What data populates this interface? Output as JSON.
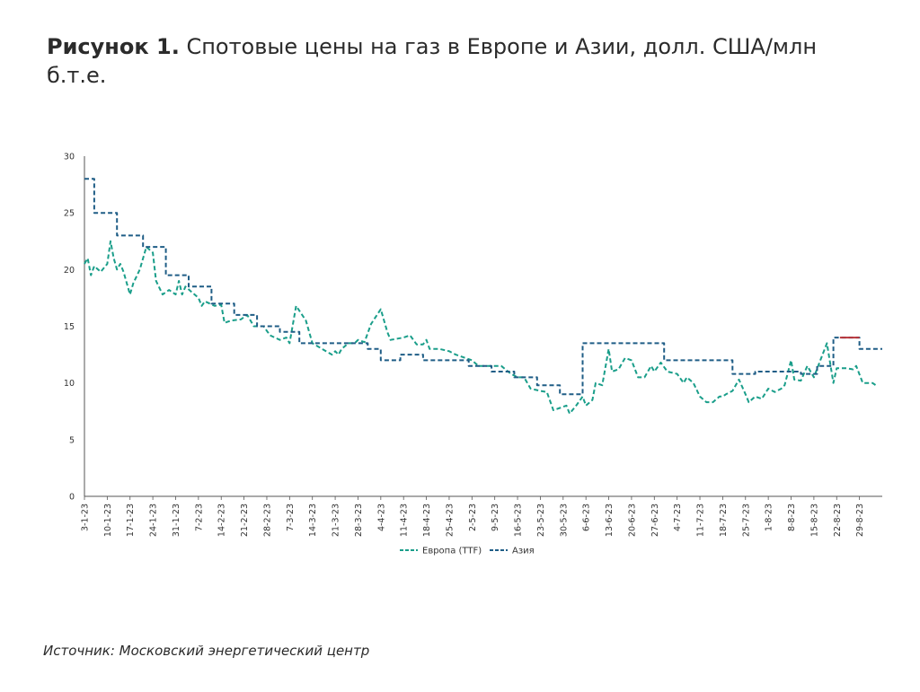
{
  "title": {
    "bold": "Рисунок 1.",
    "text": " Спотовые цены на газ в Европе и Азии, долл. США/млн б.т.е."
  },
  "source": "Источник: Московский энергетический центр",
  "colors": {
    "europe": "#1a9e8a",
    "asia": "#1f5d86",
    "asia_highlight": "#b9343a",
    "axis": "#555555"
  },
  "chart_data": {
    "type": "line",
    "ylim": [
      0,
      30
    ],
    "yticks": [
      0,
      5,
      10,
      15,
      20,
      25,
      30
    ],
    "xlim": [
      "2023-01-03",
      "2023-09-05"
    ],
    "xtick_labels": [
      "3-1-23",
      "10-1-23",
      "17-1-23",
      "24-1-23",
      "31-1-23",
      "7-2-23",
      "14-2-23",
      "21-2-23",
      "28-2-23",
      "7-3-23",
      "14-3-23",
      "21-3-23",
      "28-3-23",
      "4-4-23",
      "11-4-23",
      "18-4-23",
      "25-4-23",
      "2-5-23",
      "9-5-23",
      "16-5-23",
      "23-5-23",
      "30-5-23",
      "6-6-23",
      "13-6-23",
      "20-6-23",
      "27-6-23",
      "4-7-23",
      "11-7-23",
      "18-7-23",
      "25-7-23",
      "1-8-23",
      "8-8-23",
      "15-8-23",
      "22-8-23",
      "29-8-23"
    ],
    "legend": [
      "Европа (TTF)",
      "Азия"
    ],
    "legend_position": "bottom",
    "grid": false,
    "series": [
      {
        "name": "Европа (TTF)",
        "style": "dashed",
        "points": [
          [
            "2023-01-03",
            20.5
          ],
          [
            "2023-01-04",
            21.0
          ],
          [
            "2023-01-05",
            19.5
          ],
          [
            "2023-01-06",
            20.3
          ],
          [
            "2023-01-08",
            19.8
          ],
          [
            "2023-01-10",
            20.5
          ],
          [
            "2023-01-11",
            22.5
          ],
          [
            "2023-01-12",
            21.0
          ],
          [
            "2023-01-13",
            20.0
          ],
          [
            "2023-01-14",
            20.5
          ],
          [
            "2023-01-15",
            19.8
          ],
          [
            "2023-01-17",
            17.8
          ],
          [
            "2023-01-18",
            18.8
          ],
          [
            "2023-01-20",
            20.0
          ],
          [
            "2023-01-22",
            22.0
          ],
          [
            "2023-01-24",
            21.5
          ],
          [
            "2023-01-25",
            19.0
          ],
          [
            "2023-01-27",
            17.8
          ],
          [
            "2023-01-29",
            18.2
          ],
          [
            "2023-01-31",
            17.8
          ],
          [
            "2023-02-01",
            19.0
          ],
          [
            "2023-02-02",
            17.8
          ],
          [
            "2023-02-03",
            18.5
          ],
          [
            "2023-02-05",
            18.0
          ],
          [
            "2023-02-07",
            17.5
          ],
          [
            "2023-02-08",
            16.8
          ],
          [
            "2023-02-09",
            17.2
          ],
          [
            "2023-02-12",
            16.8
          ],
          [
            "2023-02-14",
            16.9
          ],
          [
            "2023-02-15",
            15.3
          ],
          [
            "2023-02-17",
            15.5
          ],
          [
            "2023-02-20",
            15.6
          ],
          [
            "2023-02-22",
            16.0
          ],
          [
            "2023-02-24",
            15.0
          ],
          [
            "2023-02-27",
            15.0
          ],
          [
            "2023-03-01",
            14.2
          ],
          [
            "2023-03-04",
            13.8
          ],
          [
            "2023-03-06",
            14.0
          ],
          [
            "2023-03-07",
            13.5
          ],
          [
            "2023-03-09",
            16.8
          ],
          [
            "2023-03-12",
            15.5
          ],
          [
            "2023-03-14",
            13.5
          ],
          [
            "2023-03-17",
            13.0
          ],
          [
            "2023-03-20",
            12.5
          ],
          [
            "2023-03-21",
            12.8
          ],
          [
            "2023-03-22",
            12.5
          ],
          [
            "2023-03-23",
            13.0
          ],
          [
            "2023-03-25",
            13.5
          ],
          [
            "2023-03-27",
            13.5
          ],
          [
            "2023-03-28",
            13.8
          ],
          [
            "2023-03-30",
            13.6
          ],
          [
            "2023-04-01",
            15.2
          ],
          [
            "2023-04-04",
            16.5
          ],
          [
            "2023-04-06",
            14.5
          ],
          [
            "2023-04-07",
            13.8
          ],
          [
            "2023-04-11",
            14.0
          ],
          [
            "2023-04-13",
            14.2
          ],
          [
            "2023-04-15",
            13.4
          ],
          [
            "2023-04-17",
            13.4
          ],
          [
            "2023-04-18",
            13.8
          ],
          [
            "2023-04-19",
            13.0
          ],
          [
            "2023-04-22",
            13.0
          ],
          [
            "2023-04-25",
            12.8
          ],
          [
            "2023-04-27",
            12.5
          ],
          [
            "2023-04-29",
            12.3
          ],
          [
            "2023-05-02",
            12.0
          ],
          [
            "2023-05-04",
            11.5
          ],
          [
            "2023-05-07",
            11.5
          ],
          [
            "2023-05-09",
            11.5
          ],
          [
            "2023-05-11",
            11.5
          ],
          [
            "2023-05-14",
            10.8
          ],
          [
            "2023-05-16",
            10.5
          ],
          [
            "2023-05-18",
            10.5
          ],
          [
            "2023-05-20",
            9.5
          ],
          [
            "2023-05-23",
            9.3
          ],
          [
            "2023-05-25",
            9.2
          ],
          [
            "2023-05-27",
            7.6
          ],
          [
            "2023-05-29",
            7.8
          ],
          [
            "2023-05-31",
            8.0
          ],
          [
            "2023-06-01",
            7.3
          ],
          [
            "2023-06-03",
            8.0
          ],
          [
            "2023-06-05",
            8.8
          ],
          [
            "2023-06-06",
            8.0
          ],
          [
            "2023-06-08",
            8.5
          ],
          [
            "2023-06-09",
            10.0
          ],
          [
            "2023-06-11",
            9.8
          ],
          [
            "2023-06-13",
            13.0
          ],
          [
            "2023-06-14",
            11.0
          ],
          [
            "2023-06-16",
            11.2
          ],
          [
            "2023-06-18",
            12.2
          ],
          [
            "2023-06-20",
            12.0
          ],
          [
            "2023-06-22",
            10.5
          ],
          [
            "2023-06-24",
            10.5
          ],
          [
            "2023-06-26",
            11.5
          ],
          [
            "2023-06-27",
            11.0
          ],
          [
            "2023-06-29",
            11.8
          ],
          [
            "2023-07-01",
            11.0
          ],
          [
            "2023-07-04",
            10.8
          ],
          [
            "2023-07-06",
            10.0
          ],
          [
            "2023-07-07",
            10.5
          ],
          [
            "2023-07-09",
            10.0
          ],
          [
            "2023-07-11",
            8.8
          ],
          [
            "2023-07-13",
            8.3
          ],
          [
            "2023-07-15",
            8.3
          ],
          [
            "2023-07-17",
            8.8
          ],
          [
            "2023-07-18",
            8.8
          ],
          [
            "2023-07-19",
            9.0
          ],
          [
            "2023-07-21",
            9.3
          ],
          [
            "2023-07-23",
            10.3
          ],
          [
            "2023-07-25",
            9.0
          ],
          [
            "2023-07-26",
            8.3
          ],
          [
            "2023-07-28",
            8.8
          ],
          [
            "2023-07-30",
            8.6
          ],
          [
            "2023-08-01",
            9.5
          ],
          [
            "2023-08-03",
            9.2
          ],
          [
            "2023-08-05",
            9.5
          ],
          [
            "2023-08-06",
            9.8
          ],
          [
            "2023-08-08",
            12.0
          ],
          [
            "2023-08-09",
            10.3
          ],
          [
            "2023-08-11",
            10.2
          ],
          [
            "2023-08-13",
            11.5
          ],
          [
            "2023-08-15",
            10.5
          ],
          [
            "2023-08-17",
            12.0
          ],
          [
            "2023-08-19",
            13.5
          ],
          [
            "2023-08-21",
            10.0
          ],
          [
            "2023-08-22",
            11.3
          ],
          [
            "2023-08-25",
            11.3
          ],
          [
            "2023-08-27",
            11.2
          ],
          [
            "2023-08-28",
            11.5
          ],
          [
            "2023-08-30",
            10.0
          ],
          [
            "2023-09-02",
            10.0
          ],
          [
            "2023-09-03",
            9.8
          ]
        ]
      },
      {
        "name": "Азия",
        "style": "dashed",
        "points": [
          [
            "2023-01-03",
            28.0
          ],
          [
            "2023-01-06",
            28.0
          ],
          [
            "2023-01-06",
            25.0
          ],
          [
            "2023-01-13",
            25.0
          ],
          [
            "2023-01-13",
            23.0
          ],
          [
            "2023-01-21",
            23.0
          ],
          [
            "2023-01-21",
            22.0
          ],
          [
            "2023-01-28",
            22.0
          ],
          [
            "2023-01-28",
            19.5
          ],
          [
            "2023-02-04",
            19.5
          ],
          [
            "2023-02-04",
            18.5
          ],
          [
            "2023-02-11",
            18.5
          ],
          [
            "2023-02-11",
            17.0
          ],
          [
            "2023-02-18",
            17.0
          ],
          [
            "2023-02-18",
            16.0
          ],
          [
            "2023-02-25",
            16.0
          ],
          [
            "2023-02-25",
            15.0
          ],
          [
            "2023-03-04",
            15.0
          ],
          [
            "2023-03-04",
            14.5
          ],
          [
            "2023-03-10",
            14.5
          ],
          [
            "2023-03-10",
            13.5
          ],
          [
            "2023-03-31",
            13.5
          ],
          [
            "2023-03-31",
            13.0
          ],
          [
            "2023-04-04",
            13.0
          ],
          [
            "2023-04-04",
            12.0
          ],
          [
            "2023-04-10",
            12.0
          ],
          [
            "2023-04-10",
            12.5
          ],
          [
            "2023-04-17",
            12.5
          ],
          [
            "2023-04-17",
            12.0
          ],
          [
            "2023-05-01",
            12.0
          ],
          [
            "2023-05-01",
            11.5
          ],
          [
            "2023-05-08",
            11.5
          ],
          [
            "2023-05-08",
            11.0
          ],
          [
            "2023-05-15",
            11.0
          ],
          [
            "2023-05-15",
            10.5
          ],
          [
            "2023-05-22",
            10.5
          ],
          [
            "2023-05-22",
            9.8
          ],
          [
            "2023-05-29",
            9.8
          ],
          [
            "2023-05-29",
            9.0
          ],
          [
            "2023-06-05",
            9.0
          ],
          [
            "2023-06-05",
            13.5
          ],
          [
            "2023-06-30",
            13.5
          ],
          [
            "2023-06-30",
            12.0
          ],
          [
            "2023-07-21",
            12.0
          ],
          [
            "2023-07-21",
            10.8
          ],
          [
            "2023-07-28",
            10.8
          ],
          [
            "2023-07-28",
            11.0
          ],
          [
            "2023-08-11",
            11.0
          ],
          [
            "2023-08-11",
            10.8
          ],
          [
            "2023-08-16",
            10.8
          ],
          [
            "2023-08-16",
            11.5
          ],
          [
            "2023-08-21",
            11.5
          ],
          [
            "2023-08-21",
            14.0
          ],
          [
            "2023-08-29",
            14.0
          ],
          [
            "2023-08-29",
            13.0
          ],
          [
            "2023-09-05",
            13.0
          ]
        ],
        "highlight_segment": [
          [
            "2023-08-23",
            14.0
          ],
          [
            "2023-08-29",
            14.0
          ]
        ]
      }
    ]
  }
}
